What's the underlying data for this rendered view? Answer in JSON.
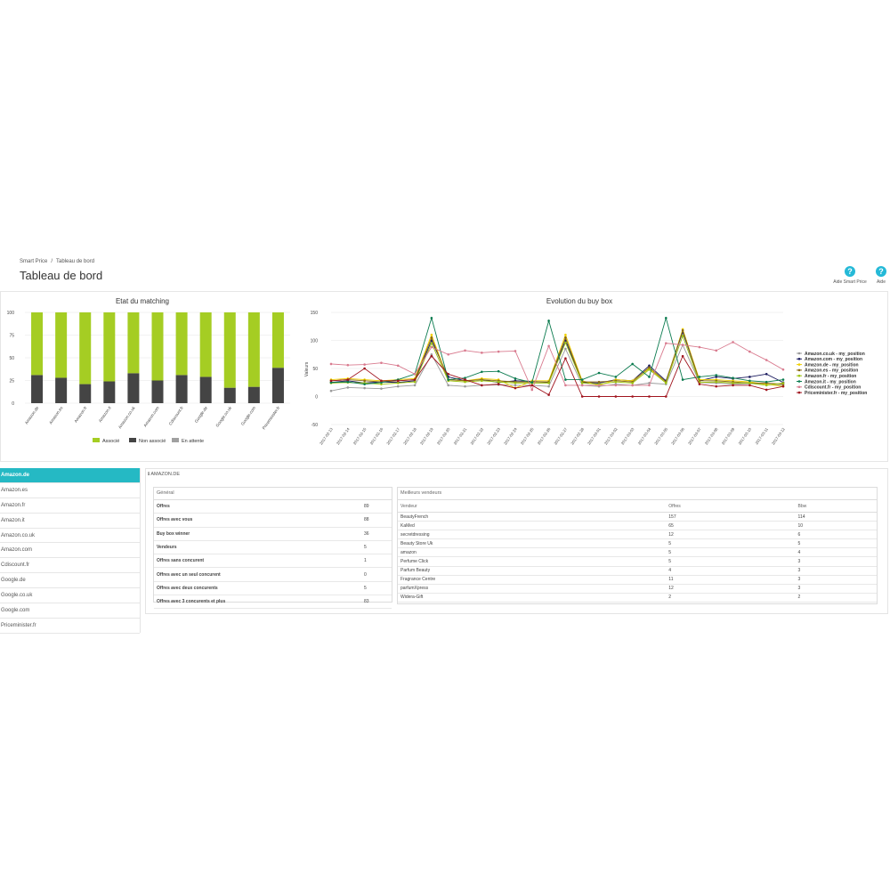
{
  "breadcrumb": {
    "parent": "Smart Price",
    "separator": "/",
    "current": "Tableau de bord"
  },
  "page_title": "Tableau de bord",
  "help_buttons": [
    {
      "label": "Aide Smart Price",
      "icon": "question-icon"
    },
    {
      "label": "Aide",
      "icon": "question-icon"
    }
  ],
  "colors": {
    "accent": "#25b9c4",
    "associe": "#a5cd23",
    "non_associe": "#444444",
    "en_attente": "#a0a0a0"
  },
  "chart_data": [
    {
      "type": "bar",
      "stacked": true,
      "title": "Etat du matching",
      "categories": [
        "Amazon.de",
        "Amazon.es",
        "Amazon.fr",
        "Amazon.it",
        "Amazon.co.uk",
        "Amazon.com",
        "Cdiscount.fr",
        "Google.de",
        "Google.co.uk",
        "Google.com",
        "Priceminister.fr"
      ],
      "series": [
        {
          "name": "Non associé",
          "color": "#444444",
          "values": [
            31,
            28,
            21,
            24,
            33,
            25,
            31,
            29,
            17,
            18,
            39
          ]
        },
        {
          "name": "Associé",
          "color": "#a5cd23",
          "values": [
            69,
            72,
            79,
            76,
            67,
            75,
            69,
            71,
            83,
            82,
            61
          ]
        },
        {
          "name": "En attente",
          "color": "#a0a0a0",
          "values": [
            0,
            0,
            0,
            0,
            0,
            0,
            0,
            0,
            0,
            0,
            0
          ]
        }
      ],
      "yticks": [
        "0",
        "25",
        "50",
        "75",
        "100"
      ],
      "ylim": [
        0,
        100
      ],
      "legend": "bottom"
    },
    {
      "type": "line",
      "title": "Evolution du buy box",
      "ylabel": "Valeurs",
      "ylim": [
        -50,
        150
      ],
      "yticks": [
        "-50",
        "0",
        "50",
        "100",
        "150"
      ],
      "legend": "right",
      "x": [
        "2017-02-13",
        "2017-02-14",
        "2017-02-15",
        "2017-02-16",
        "2017-02-17",
        "2017-02-18",
        "2017-02-19",
        "2017-02-20",
        "2017-02-21",
        "2017-02-22",
        "2017-02-23",
        "2017-02-24",
        "2017-02-25",
        "2017-02-26",
        "2017-02-27",
        "2017-02-28",
        "2017-03-01",
        "2017-03-02",
        "2017-03-03",
        "2017-03-04",
        "2017-03-05",
        "2017-03-06",
        "2017-03-07",
        "2017-03-08",
        "2017-03-09",
        "2017-03-10",
        "2017-03-11",
        "2017-03-12"
      ],
      "series": [
        {
          "name": "Amazon.co.uk - my_position",
          "color": "#999999",
          "values": [
            10,
            16,
            15,
            14,
            18,
            20,
            75,
            20,
            18,
            20,
            21,
            20,
            20,
            18,
            85,
            20,
            18,
            22,
            20,
            24,
            22,
            92,
            25,
            24,
            22,
            23,
            22,
            20
          ]
        },
        {
          "name": "Amazon.com - my_position",
          "color": "#1a1a5e",
          "values": [
            25,
            28,
            24,
            26,
            25,
            28,
            100,
            35,
            28,
            30,
            25,
            28,
            27,
            25,
            100,
            25,
            24,
            30,
            28,
            55,
            28,
            115,
            28,
            35,
            32,
            35,
            40,
            25
          ]
        },
        {
          "name": "Amazon.de - my_position",
          "color": "#f0d000",
          "values": [
            30,
            32,
            30,
            28,
            30,
            32,
            110,
            30,
            28,
            32,
            30,
            15,
            28,
            28,
            110,
            28,
            20,
            30,
            28,
            50,
            26,
            120,
            30,
            30,
            28,
            26,
            22,
            18
          ]
        },
        {
          "name": "Amazon.es - my_position",
          "color": "#8b6914",
          "values": [
            28,
            30,
            28,
            26,
            28,
            30,
            105,
            30,
            28,
            30,
            28,
            26,
            26,
            26,
            105,
            26,
            26,
            28,
            26,
            52,
            26,
            118,
            28,
            28,
            26,
            24,
            24,
            22
          ]
        },
        {
          "name": "Amazon.fr - my_position",
          "color": "#9dc40e",
          "values": [
            24,
            25,
            24,
            22,
            24,
            26,
            95,
            28,
            26,
            28,
            26,
            24,
            24,
            24,
            96,
            24,
            22,
            26,
            24,
            48,
            24,
            108,
            25,
            26,
            24,
            24,
            20,
            24
          ]
        },
        {
          "name": "Amazon.it - my_position",
          "color": "#0b7b4f",
          "values": [
            25,
            26,
            22,
            25,
            30,
            40,
            140,
            30,
            33,
            44,
            45,
            32,
            25,
            135,
            30,
            30,
            42,
            35,
            58,
            35,
            140,
            30,
            35,
            38,
            33,
            28,
            26,
            30
          ]
        },
        {
          "name": "Cdiscount.fr - my_position",
          "color": "#d97b8f",
          "values": [
            58,
            56,
            57,
            60,
            55,
            40,
            88,
            75,
            82,
            78,
            80,
            81,
            12,
            90,
            20,
            20,
            20,
            20,
            20,
            20,
            95,
            92,
            88,
            82,
            97,
            80,
            65,
            48
          ]
        },
        {
          "name": "Priceminister.fr - my_position",
          "color": "#a0141e",
          "values": [
            28,
            30,
            50,
            28,
            28,
            30,
            72,
            40,
            30,
            20,
            22,
            15,
            20,
            3,
            68,
            0,
            0,
            0,
            0,
            0,
            0,
            72,
            22,
            18,
            20,
            20,
            12,
            18
          ]
        }
      ]
    }
  ],
  "sidebar": {
    "items": [
      {
        "label": "Amazon.de",
        "active": true
      },
      {
        "label": "Amazon.es",
        "active": false
      },
      {
        "label": "Amazon.fr",
        "active": false
      },
      {
        "label": "Amazon.it",
        "active": false
      },
      {
        "label": "Amazon.co.uk",
        "active": false
      },
      {
        "label": "Amazon.com",
        "active": false
      },
      {
        "label": "Cdiscount.fr",
        "active": false
      },
      {
        "label": "Google.de",
        "active": false
      },
      {
        "label": "Google.co.uk",
        "active": false
      },
      {
        "label": "Google.com",
        "active": false
      },
      {
        "label": "Priceminister.fr",
        "active": false
      }
    ]
  },
  "detail": {
    "title": "AMAZON.DE",
    "general": {
      "header": "Général",
      "rows": [
        {
          "label": "Offres",
          "value": "89"
        },
        {
          "label": "Offres avec vous",
          "value": "88"
        },
        {
          "label": "Buy box winner",
          "value": "36"
        },
        {
          "label": "Vendeurs",
          "value": "5"
        },
        {
          "label": "Offres sans concurent",
          "value": "1"
        },
        {
          "label": "Offres avec un seul concurent",
          "value": "0"
        },
        {
          "label": "Offres avec deux concurents",
          "value": "5"
        },
        {
          "label": "Offres avec 3 concurents et plus",
          "value": "83"
        }
      ]
    },
    "sellers": {
      "header": "Meilleurs vendeurs",
      "columns": [
        "Vendeur",
        "Offres",
        "Bbw"
      ],
      "rows": [
        [
          "BeautyFrench",
          "157",
          "114"
        ],
        [
          "KaMed",
          "65",
          "10"
        ],
        [
          "secretdressing",
          "12",
          "6"
        ],
        [
          "Beauty Store Uk",
          "5",
          "5"
        ],
        [
          "amazon",
          "5",
          "4"
        ],
        [
          "Perfume Click",
          "5",
          "3"
        ],
        [
          "Parfum Beauty",
          "4",
          "3"
        ],
        [
          "Fragrance Centre",
          "11",
          "3"
        ],
        [
          "parfumXpress",
          "12",
          "3"
        ],
        [
          "Widera-Gift",
          "2",
          "2"
        ]
      ]
    }
  }
}
